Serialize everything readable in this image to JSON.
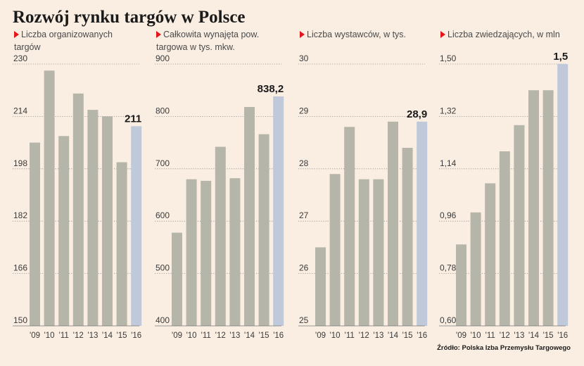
{
  "title": "Rozwój rynku targów w Polsce",
  "source": "Źródło: Polska Izba Przemysłu Targowego",
  "colors": {
    "bar": "#b6b5a9",
    "bar_highlight": "#c0c9d9",
    "marker": "#e3161b",
    "background": "#faeee2"
  },
  "chart_data": [
    {
      "type": "bar",
      "title": "Liczba organizowanych targów",
      "categories": [
        "'09",
        "'10",
        "'11",
        "'12",
        "'13",
        "'14",
        "'15",
        "'16"
      ],
      "values": [
        206,
        228,
        208,
        221,
        216,
        214,
        200,
        211
      ],
      "ylim": [
        150,
        230
      ],
      "yticks": [
        "230",
        "214",
        "198",
        "182",
        "166",
        "150"
      ],
      "highlight_label": "211"
    },
    {
      "type": "bar",
      "title": "Całkowita wynajęta pow. targowa w tys. mkw.",
      "categories": [
        "'09",
        "'10",
        "'11",
        "'12",
        "'13",
        "'14",
        "'15",
        "'16"
      ],
      "values": [
        578,
        680,
        677,
        742,
        682,
        818,
        766,
        838.2
      ],
      "ylim": [
        400,
        900
      ],
      "yticks": [
        "900",
        "800",
        "700",
        "600",
        "500",
        "400"
      ],
      "highlight_label": "838,2"
    },
    {
      "type": "bar",
      "title": "Liczba wystawców, w tys.",
      "categories": [
        "'09",
        "'10",
        "'11",
        "'12",
        "'13",
        "'14",
        "'15",
        "'16"
      ],
      "values": [
        26.5,
        27.9,
        28.8,
        27.8,
        27.8,
        28.9,
        28.4,
        28.9
      ],
      "ylim": [
        25,
        30
      ],
      "yticks": [
        "30",
        "29",
        "28",
        "27",
        "26",
        "25"
      ],
      "highlight_label": "28,9"
    },
    {
      "type": "bar",
      "title": "Liczba zwiedzających, w mln",
      "categories": [
        "'09",
        "'10",
        "'11",
        "'12",
        "'13",
        "'14",
        "'15",
        "'16"
      ],
      "values": [
        0.88,
        0.99,
        1.09,
        1.2,
        1.29,
        1.41,
        1.41,
        1.5
      ],
      "ylim": [
        0.6,
        1.5
      ],
      "yticks": [
        "1,50",
        "1,32",
        "1,14",
        "0,96",
        "0,78",
        "0,60"
      ],
      "highlight_label": "1,5"
    }
  ]
}
